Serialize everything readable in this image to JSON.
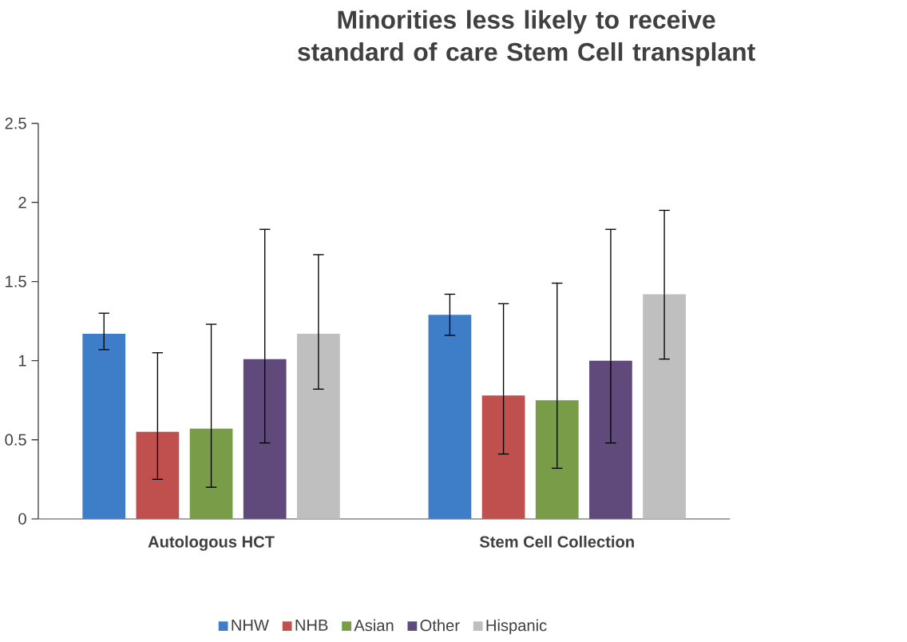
{
  "chart_data": {
    "type": "bar",
    "title": "Minorities less likely to receive standard of care Stem Cell transplant",
    "categories": [
      "Autologous HCT",
      "Stem Cell Collection"
    ],
    "series": [
      {
        "name": "NHW",
        "color": "#3e7dc8",
        "values": [
          1.17,
          1.29
        ],
        "errors": [
          [
            1.07,
            1.3
          ],
          [
            1.16,
            1.42
          ]
        ]
      },
      {
        "name": "NHB",
        "color": "#c0504d",
        "values": [
          0.55,
          0.78
        ],
        "errors": [
          [
            0.25,
            1.05
          ],
          [
            0.41,
            1.36
          ]
        ]
      },
      {
        "name": "Asian",
        "color": "#789c47",
        "values": [
          0.57,
          0.75
        ],
        "errors": [
          [
            0.2,
            1.23
          ],
          [
            0.32,
            1.49
          ]
        ]
      },
      {
        "name": "Other",
        "color": "#604a7b",
        "values": [
          1.01,
          1.0
        ],
        "errors": [
          [
            0.48,
            1.83
          ],
          [
            0.48,
            1.83
          ]
        ]
      },
      {
        "name": "Hispanic",
        "color": "#bfbfbf",
        "values": [
          1.17,
          1.42
        ],
        "errors": [
          [
            0.82,
            1.67
          ],
          [
            1.01,
            1.95
          ]
        ]
      }
    ],
    "ylim": [
      0,
      2.5
    ],
    "yticks": [
      0,
      0.5,
      1,
      1.5,
      2,
      2.5
    ],
    "grid": false,
    "legend": "bottom"
  }
}
